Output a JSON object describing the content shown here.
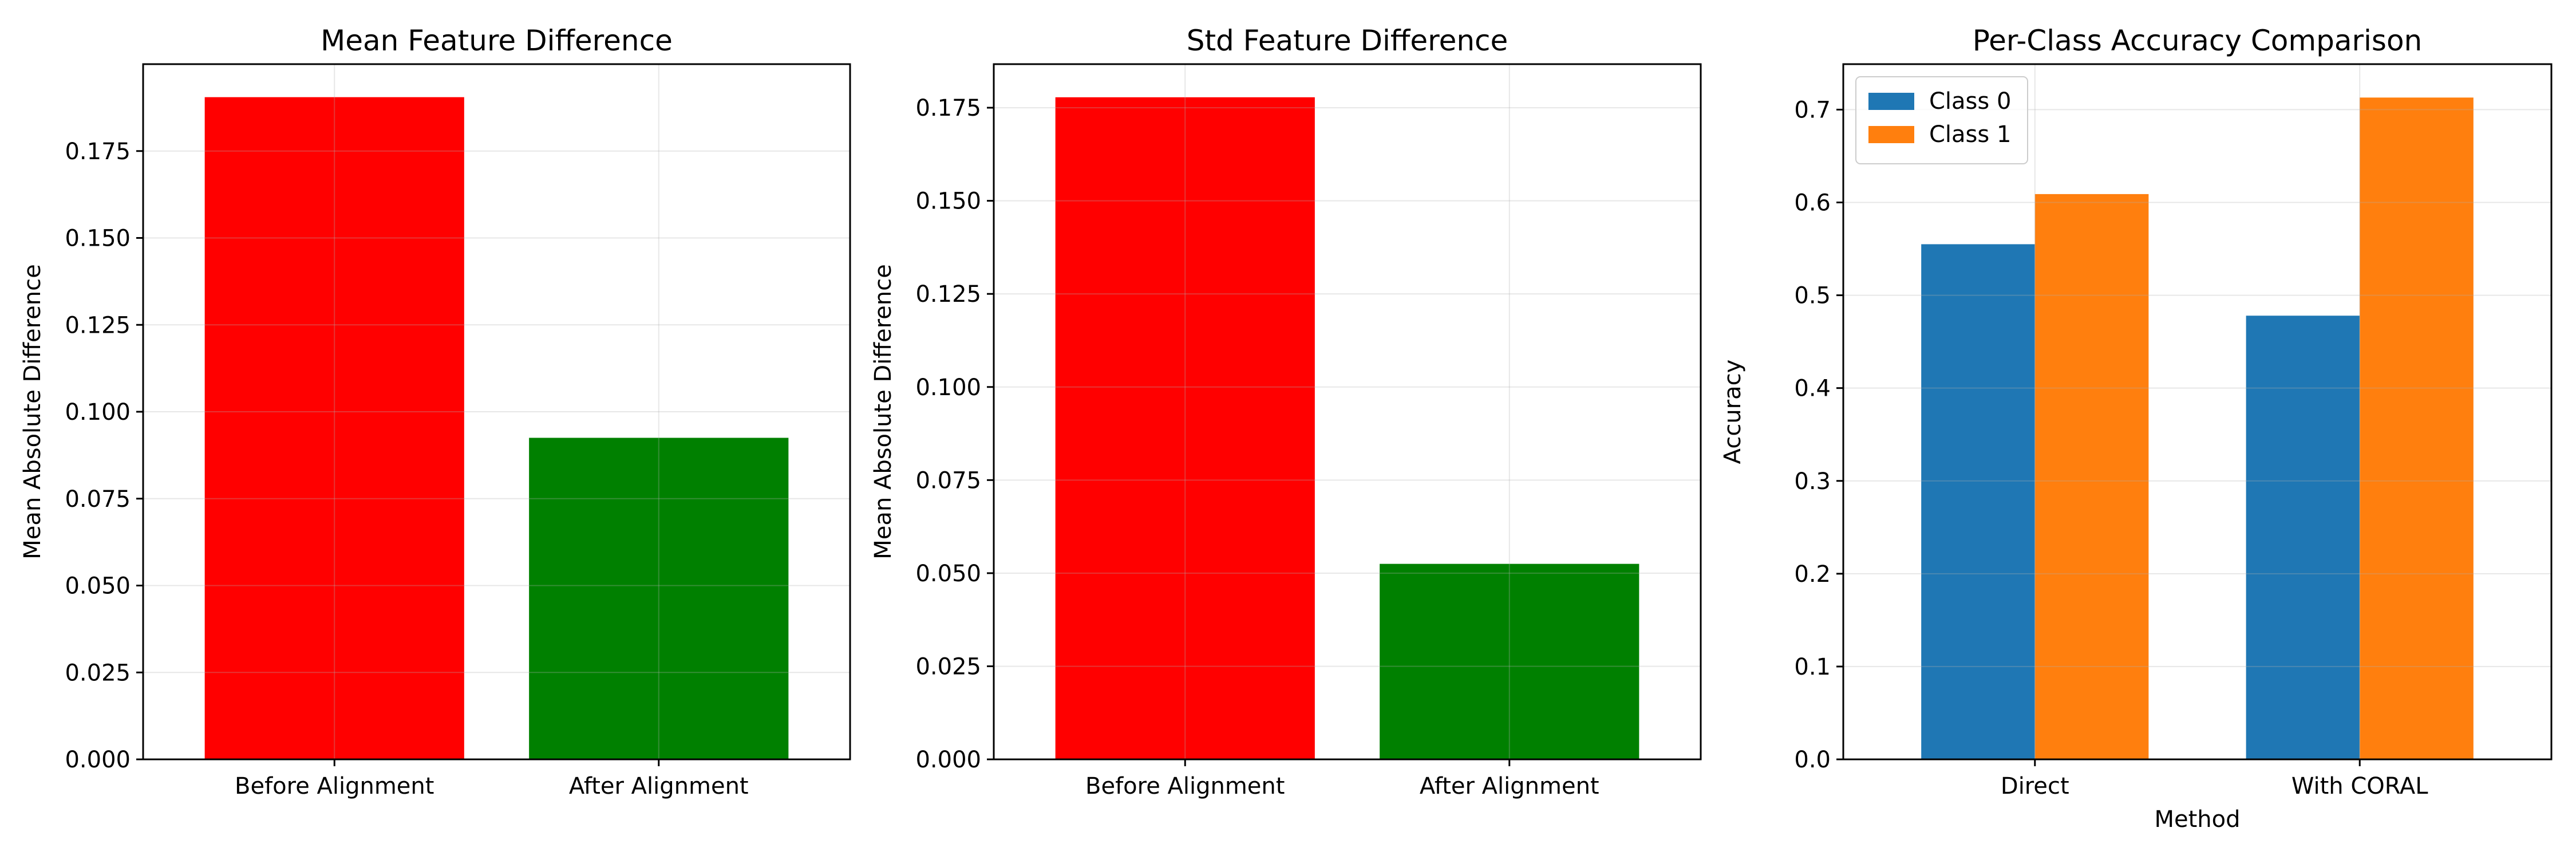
{
  "chart_data": [
    {
      "type": "bar",
      "title": "Mean Feature Difference",
      "xlabel": "",
      "ylabel": "Mean Absolute Difference",
      "categories": [
        "Before Alignment",
        "After Alignment"
      ],
      "values": [
        0.1905,
        0.0925
      ],
      "bar_colors": [
        "#ff0000",
        "#008000"
      ],
      "ylim": [
        0,
        0.2
      ],
      "yticks": [
        0,
        0.025,
        0.05,
        0.075,
        0.1,
        0.125,
        0.15,
        0.175
      ],
      "ytick_labels": [
        "0.000",
        "0.025",
        "0.050",
        "0.075",
        "0.100",
        "0.125",
        "0.150",
        "0.175"
      ],
      "grid": true,
      "legend": false
    },
    {
      "type": "bar",
      "title": "Std Feature Difference",
      "xlabel": "",
      "ylabel": "Mean Absolute Difference",
      "categories": [
        "Before Alignment",
        "After Alignment"
      ],
      "values": [
        0.1778,
        0.0525
      ],
      "bar_colors": [
        "#ff0000",
        "#008000"
      ],
      "ylim": [
        0,
        0.1867
      ],
      "yticks": [
        0,
        0.025,
        0.05,
        0.075,
        0.1,
        0.125,
        0.15,
        0.175
      ],
      "ytick_labels": [
        "0.000",
        "0.025",
        "0.050",
        "0.075",
        "0.100",
        "0.125",
        "0.150",
        "0.175"
      ],
      "grid": true,
      "legend": false
    },
    {
      "type": "bar",
      "title": "Per-Class Accuracy Comparison",
      "xlabel": "Method",
      "ylabel": "Accuracy",
      "categories": [
        "Direct",
        "With CORAL"
      ],
      "series": [
        {
          "name": "Class 0",
          "values": [
            0.555,
            0.478
          ],
          "color": "#1f77b4"
        },
        {
          "name": "Class 1",
          "values": [
            0.609,
            0.713
          ],
          "color": "#ff7f0e"
        }
      ],
      "ylim": [
        0,
        0.749
      ],
      "yticks": [
        0,
        0.1,
        0.2,
        0.3,
        0.4,
        0.5,
        0.6,
        0.7
      ],
      "ytick_labels": [
        "0.0",
        "0.1",
        "0.2",
        "0.3",
        "0.4",
        "0.5",
        "0.6",
        "0.7"
      ],
      "grid": true,
      "legend": true,
      "legend_position": "upper-left"
    }
  ]
}
